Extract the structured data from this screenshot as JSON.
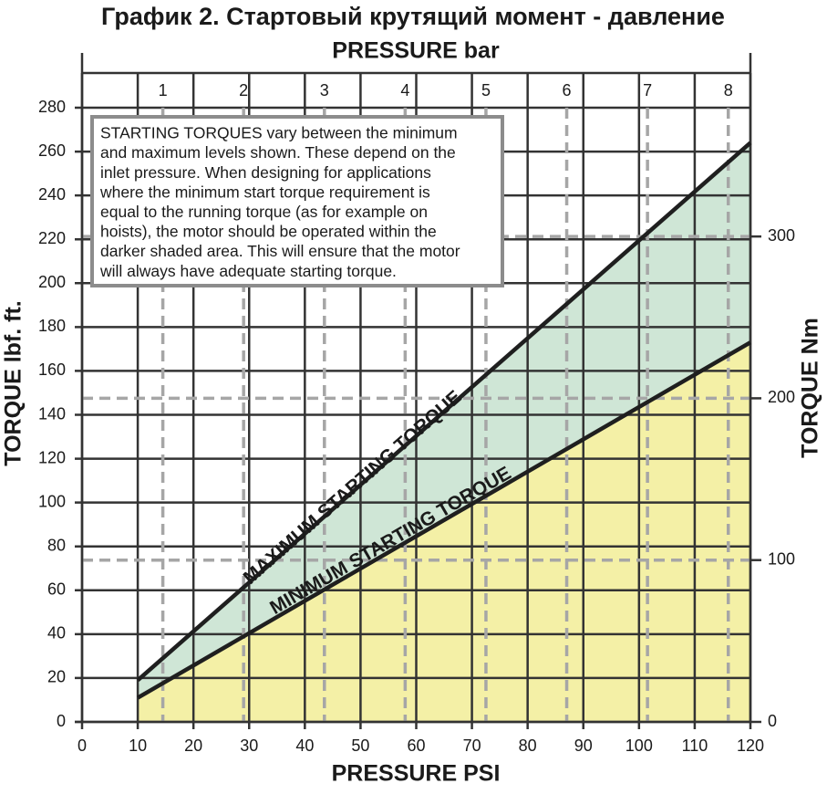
{
  "chart_data": {
    "type": "line",
    "title": "График 2. Стартовый крутящий момент - давление",
    "x_label": "PRESSURE PSI",
    "x2_label": "PRESSURE bar",
    "y_label": "TORQUE lbf. ft.",
    "y2_label": "TORQUE Nm",
    "annotation": [
      "STARTING TORQUES vary between the minimum",
      "and maximum levels shown. These depend on the",
      "inlet pressure. When designing for applications",
      "where the minimum start torque requirement is",
      "equal to the running torque (as for example on",
      "hoists), the motor should be operated within the",
      "darker shaded area. This will ensure that the motor",
      "will always have adequate starting torque."
    ],
    "x": [
      10,
      120
    ],
    "series": [
      {
        "name": "MAXIMUM STARTING TORQUE",
        "color": "#1f1f1f",
        "fill": "#cfe6d6",
        "values": [
          19,
          264
        ]
      },
      {
        "name": "MINIMUM STARTING TORQUE",
        "color": "#1f1f1f",
        "fill": "#f4f0a6",
        "values": [
          11,
          173
        ]
      }
    ],
    "xlim": [
      0,
      120
    ],
    "xticks": [
      0,
      10,
      20,
      30,
      40,
      50,
      60,
      70,
      80,
      90,
      100,
      110,
      120
    ],
    "ylim": [
      0,
      280
    ],
    "yticks": [
      0,
      20,
      40,
      60,
      80,
      100,
      120,
      140,
      160,
      180,
      200,
      220,
      240,
      260,
      280
    ],
    "x2lim": [
      0,
      8.274
    ],
    "x2ticks": [
      1,
      2,
      3,
      4,
      5,
      6,
      7,
      8
    ],
    "y2lim": [
      0,
      379.6
    ],
    "y2ticks": [
      0,
      100,
      200,
      300
    ],
    "grid": true
  }
}
